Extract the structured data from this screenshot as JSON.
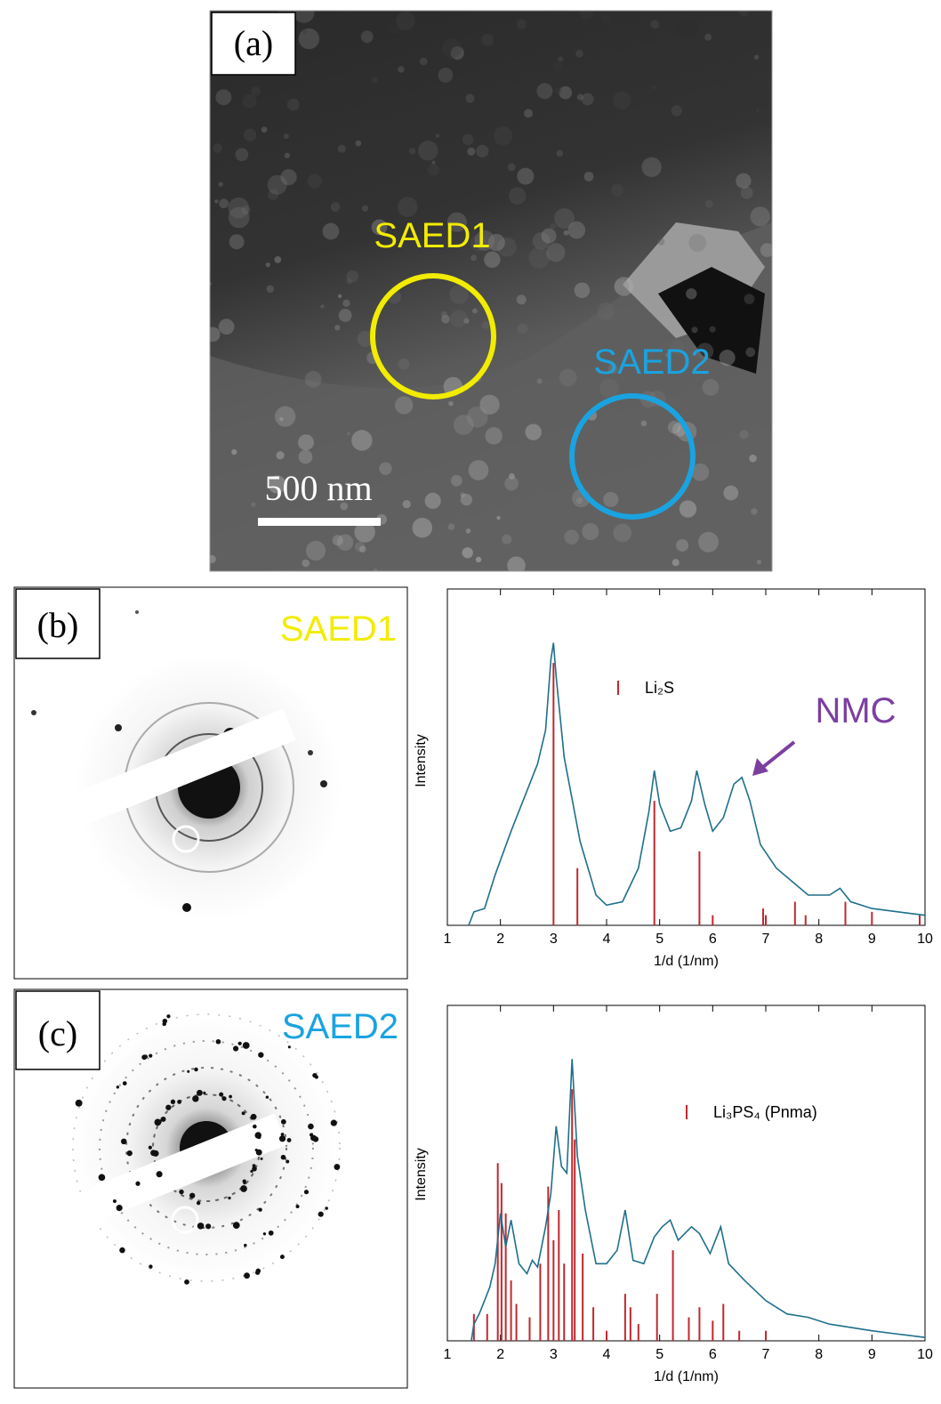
{
  "panels": {
    "a": {
      "label": "(a)",
      "regions": [
        "SAED1",
        "SAED2"
      ],
      "scale_bar": "500 nm"
    },
    "b": {
      "label": "(b)",
      "title": "SAED1"
    },
    "c": {
      "label": "(c)",
      "title": "SAED2"
    }
  },
  "chart_data": [
    {
      "type": "line",
      "xlabel": "1/d (1/nm)",
      "ylabel": "Intensity",
      "annotation": "NMC",
      "xlim": [
        1,
        10
      ],
      "xticks": [
        1,
        2,
        3,
        4,
        5,
        6,
        7,
        8,
        9,
        10
      ],
      "ylim": [
        0,
        100
      ],
      "line": {
        "color": "#1f6f8b",
        "x": [
          1.4,
          1.5,
          1.7,
          1.9,
          2.2,
          2.5,
          2.7,
          2.85,
          2.95,
          3.0,
          3.05,
          3.2,
          3.5,
          3.8,
          4.0,
          4.3,
          4.6,
          4.8,
          4.9,
          5.0,
          5.2,
          5.4,
          5.6,
          5.7,
          5.85,
          6.0,
          6.2,
          6.4,
          6.55,
          6.7,
          6.9,
          7.2,
          7.5,
          7.8,
          8.2,
          8.4,
          8.6,
          9.0,
          9.5,
          10.0
        ],
        "values": [
          0,
          4,
          5,
          15,
          28,
          40,
          48,
          58,
          79,
          84,
          74,
          50,
          25,
          9,
          6,
          7,
          17,
          34,
          46,
          36,
          28,
          29,
          37,
          46,
          36,
          28,
          32,
          42,
          44,
          37,
          24,
          17,
          13,
          9,
          9,
          11,
          7,
          5,
          4,
          3
        ]
      },
      "sticks": {
        "name": "Li₂S",
        "color": "#c0282e",
        "x": [
          3.0,
          3.45,
          4.9,
          5.75,
          6.0,
          6.95,
          7.0,
          7.55,
          7.75,
          8.5,
          9.0,
          9.9
        ],
        "values": [
          78,
          17,
          37,
          22,
          3,
          5,
          3,
          7,
          3,
          7,
          4,
          3
        ]
      }
    },
    {
      "type": "line",
      "xlabel": "1/d (1/nm)",
      "ylabel": "Intensity",
      "xlim": [
        1,
        10
      ],
      "xticks": [
        1,
        2,
        3,
        4,
        5,
        6,
        7,
        8,
        9,
        10
      ],
      "ylim": [
        0,
        100
      ],
      "line": {
        "color": "#1f6f8b",
        "x": [
          1.45,
          1.5,
          1.6,
          1.7,
          1.8,
          1.9,
          2.0,
          2.1,
          2.2,
          2.35,
          2.5,
          2.6,
          2.7,
          2.85,
          2.95,
          3.05,
          3.15,
          3.25,
          3.35,
          3.45,
          3.6,
          3.8,
          4.0,
          4.2,
          4.35,
          4.5,
          4.7,
          4.9,
          5.05,
          5.2,
          5.35,
          5.6,
          5.75,
          5.95,
          6.15,
          6.3,
          6.6,
          7.0,
          7.4,
          7.8,
          8.2,
          8.6,
          9.0,
          9.5,
          10.0
        ],
        "values": [
          0,
          5,
          8,
          12,
          16,
          23,
          38,
          28,
          36,
          23,
          20,
          24,
          22,
          34,
          44,
          64,
          52,
          50,
          84,
          55,
          39,
          23,
          23,
          27,
          39,
          24,
          23,
          31,
          34,
          36,
          30,
          34,
          32,
          26,
          34,
          23,
          18,
          12,
          8,
          7,
          5,
          4,
          3,
          2,
          1
        ]
      },
      "sticks": {
        "name": "Li₃PS₄ (Pnma)",
        "color": "#c0282e",
        "x": [
          1.5,
          1.75,
          1.95,
          2.02,
          2.1,
          2.2,
          2.3,
          2.55,
          2.75,
          2.9,
          3.0,
          3.1,
          3.2,
          3.35,
          3.4,
          3.55,
          3.75,
          4.0,
          4.35,
          4.45,
          4.6,
          4.95,
          5.25,
          5.55,
          5.75,
          6.0,
          6.2,
          6.5,
          7.0
        ],
        "values": [
          8,
          8,
          53,
          47,
          38,
          18,
          11,
          7,
          23,
          46,
          30,
          39,
          23,
          75,
          60,
          26,
          10,
          3,
          14,
          10,
          5,
          14,
          27,
          7,
          10,
          6,
          11,
          3,
          3
        ]
      }
    }
  ]
}
